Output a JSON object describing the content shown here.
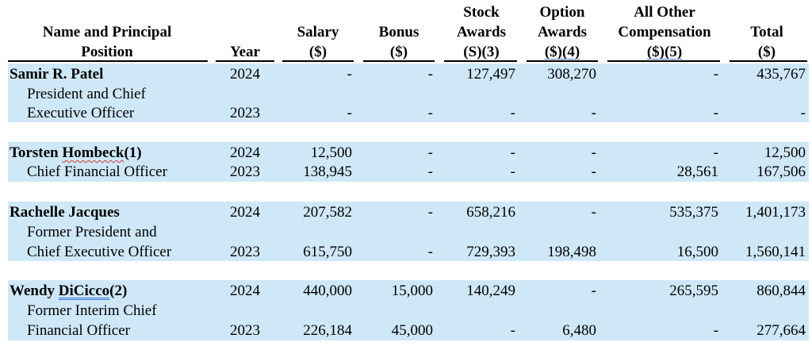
{
  "headers": {
    "name": [
      "Name and Principal",
      "Position"
    ],
    "year": [
      "Year"
    ],
    "salary": [
      "Salary",
      "($)"
    ],
    "bonus": [
      "Bonus",
      "($)"
    ],
    "stock": [
      "Stock",
      "Awards",
      "(S)(3)"
    ],
    "option": [
      "Option",
      "Awards",
      "($)(4)"
    ],
    "other": [
      "All Other",
      "Compensation",
      "($)(5)"
    ],
    "total": [
      "Total",
      "($)"
    ]
  },
  "officers": [
    {
      "name_parts": [
        "Samir R. Patel"
      ],
      "title_lines": [
        "President and Chief",
        "Executive Officer"
      ],
      "rows": [
        {
          "year": "2024",
          "salary": "-",
          "bonus": "-",
          "stock": "127,497",
          "option": "308,270",
          "other": "-",
          "total": "435,767"
        },
        {
          "year": "2023",
          "salary": "-",
          "bonus": "-",
          "stock": "-",
          "option": "-",
          "other": "-",
          "total": "-"
        }
      ]
    },
    {
      "name_parts": [
        "Torsten ",
        "Hombeck",
        "(1)"
      ],
      "title_lines": [
        "Chief Financial Officer"
      ],
      "rows": [
        {
          "year": "2024",
          "salary": "12,500",
          "bonus": "-",
          "stock": "-",
          "option": "-",
          "other": "-",
          "total": "12,500"
        },
        {
          "year": "2023",
          "salary": "138,945",
          "bonus": "-",
          "stock": "-",
          "option": "-",
          "other": "28,561",
          "total": "167,506"
        }
      ]
    },
    {
      "name_parts": [
        "Rachelle Jacques"
      ],
      "title_lines": [
        "Former President and",
        "Chief Executive Officer"
      ],
      "rows": [
        {
          "year": "2024",
          "salary": "207,582",
          "bonus": "-",
          "stock": "658,216",
          "option": "-",
          "other": "535,375",
          "total": "1,401,173"
        },
        {
          "year": "2023",
          "salary": "615,750",
          "bonus": "-",
          "stock": "729,393",
          "option": "198,498",
          "other": "16,500",
          "total": "1,560,141"
        }
      ]
    },
    {
      "name_parts": [
        "Wendy ",
        "DiCicco",
        "(2)"
      ],
      "title_lines": [
        "Former Interim Chief",
        "Financial Officer"
      ],
      "rows": [
        {
          "year": "2024",
          "salary": "440,000",
          "bonus": "15,000",
          "stock": "140,249",
          "option": "-",
          "other": "265,595",
          "total": "860,844"
        },
        {
          "year": "2023",
          "salary": "226,184",
          "bonus": "45,000",
          "stock": "-",
          "option": "6,480",
          "other": "-",
          "total": "277,664"
        }
      ]
    }
  ]
}
